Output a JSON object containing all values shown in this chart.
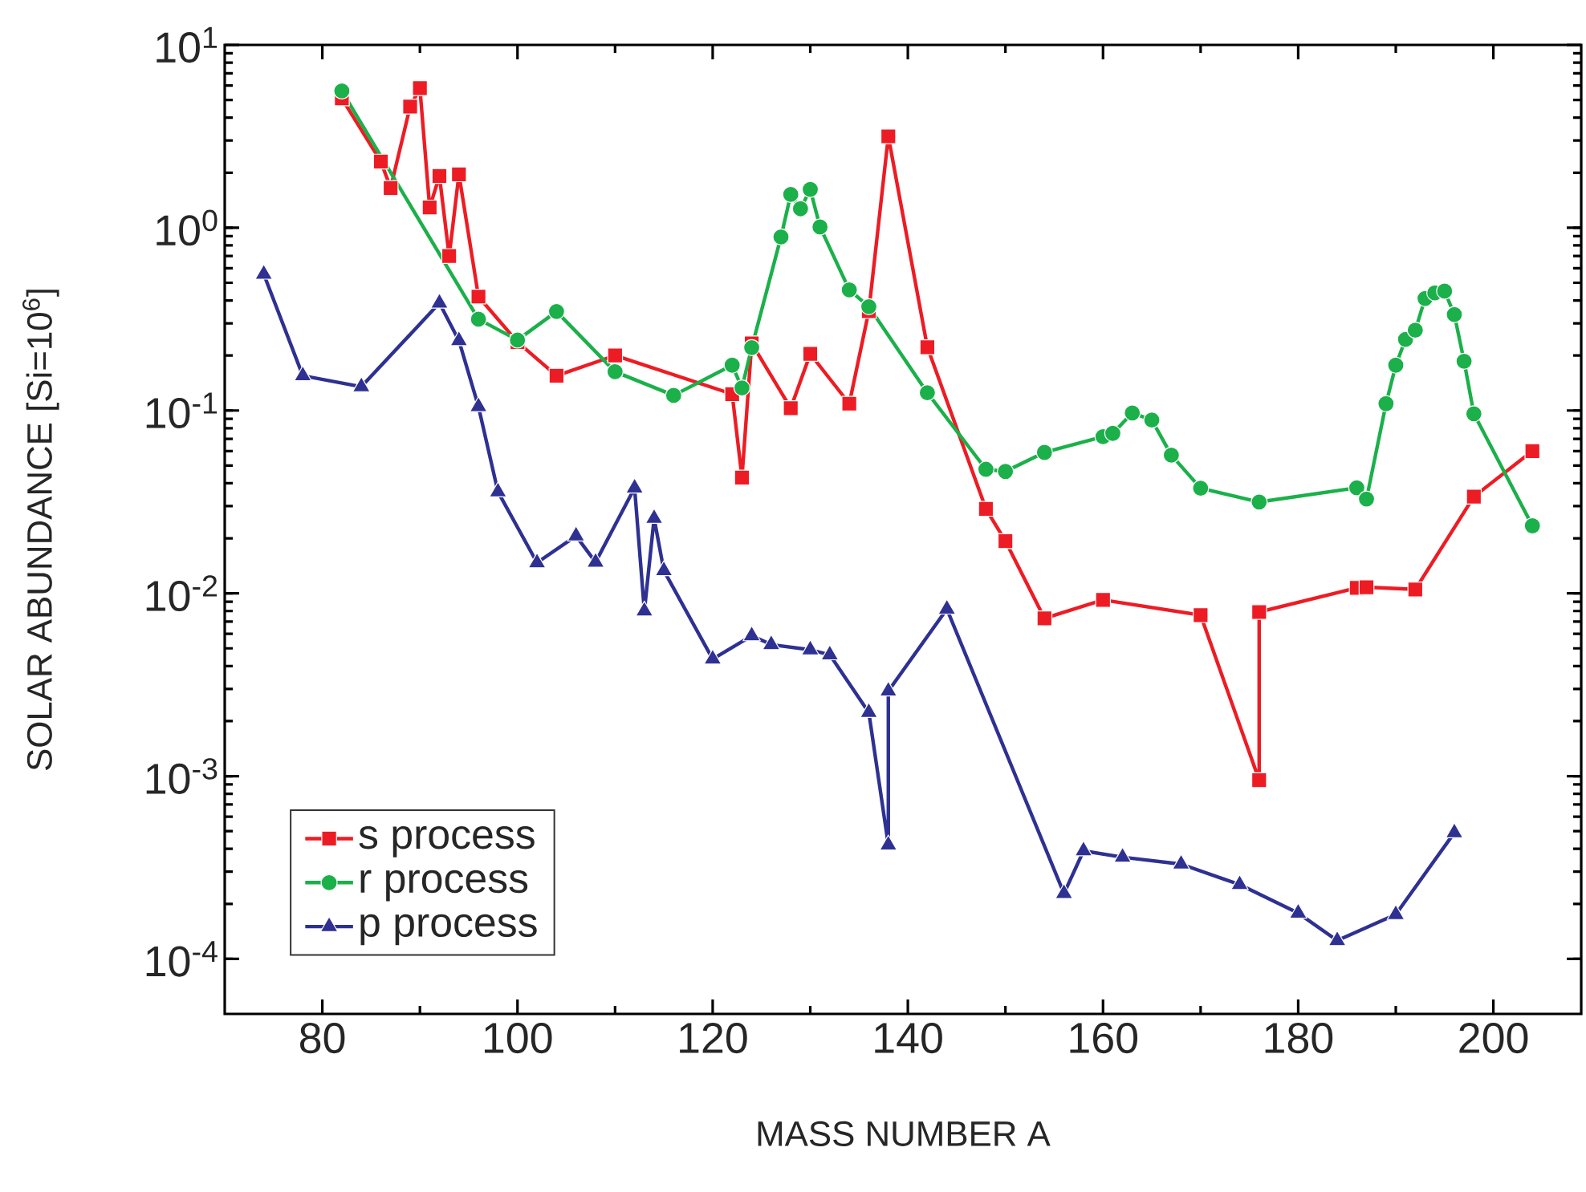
{
  "chart_data": {
    "type": "line",
    "xlabel": "MASS NUMBER A",
    "ylabel": "SOLAR ABUNDANCE [Si=10$^{6}$]",
    "log": "y",
    "legend": "bottom left",
    "grid": false,
    "xlim": [
      70,
      209
    ],
    "ylim": [
      5e-05,
      10
    ],
    "xticks": [
      80,
      100,
      120,
      140,
      160,
      180,
      200
    ],
    "yticks": [
      {
        "value": 0.0001,
        "label": "10$^{-4}$"
      },
      {
        "value": 0.001,
        "label": "10$^{-3}$"
      },
      {
        "value": 0.01,
        "label": "10$^{-2}$"
      },
      {
        "value": 0.1,
        "label": "10$^{-1}$"
      },
      {
        "value": 1,
        "label": "10$^{0}$"
      },
      {
        "value": 10,
        "label": "10$^{1}$"
      }
    ],
    "series": [
      {
        "name": "s process",
        "color": "#ed1c24",
        "marker": "square",
        "x": [
          82,
          86,
          87,
          89,
          90,
          91,
          92,
          93,
          94,
          96,
          100,
          104,
          110,
          122,
          123,
          124,
          128,
          130,
          134,
          136,
          138,
          142,
          148,
          150,
          154,
          160,
          170,
          176,
          176,
          186,
          187,
          192,
          198,
          204
        ],
        "values": [
          5.1,
          2.3,
          1.65,
          4.6,
          5.8,
          1.29,
          1.92,
          0.7,
          1.96,
          0.42,
          0.237,
          0.155,
          0.2,
          0.123,
          0.043,
          0.233,
          0.103,
          0.204,
          0.109,
          0.35,
          3.16,
          0.222,
          0.029,
          0.0193,
          0.0073,
          0.0092,
          0.0076,
          0.00095,
          0.0079,
          0.0107,
          0.0108,
          0.0105,
          0.0338,
          0.06
        ]
      },
      {
        "name": "r process",
        "color": "#1bb04a",
        "marker": "circle",
        "x": [
          82,
          96,
          100,
          104,
          110,
          116,
          122,
          123,
          124,
          127,
          128,
          129,
          130,
          131,
          134,
          136,
          142,
          148,
          150,
          154,
          160,
          161,
          163,
          165,
          167,
          170,
          176,
          186,
          187,
          189,
          190,
          191,
          192,
          193,
          194,
          195,
          196,
          197,
          198,
          204
        ],
        "values": [
          5.6,
          0.316,
          0.243,
          0.348,
          0.163,
          0.121,
          0.177,
          0.133,
          0.221,
          0.89,
          1.52,
          1.27,
          1.62,
          1.01,
          0.457,
          0.37,
          0.125,
          0.0477,
          0.0464,
          0.059,
          0.072,
          0.075,
          0.097,
          0.0887,
          0.057,
          0.0376,
          0.0316,
          0.0378,
          0.0328,
          0.109,
          0.177,
          0.245,
          0.275,
          0.41,
          0.44,
          0.45,
          0.335,
          0.186,
          0.096,
          0.0234
        ]
      },
      {
        "name": "p process",
        "color": "#2e3192",
        "marker": "triangle",
        "x": [
          74,
          78,
          84,
          92,
          94,
          96,
          98,
          102,
          106,
          108,
          112,
          113,
          114,
          115,
          120,
          124,
          126,
          130,
          132,
          136,
          138,
          138,
          144,
          156,
          158,
          162,
          168,
          174,
          180,
          184,
          190,
          196
        ],
        "values": [
          0.557,
          0.155,
          0.135,
          0.387,
          0.241,
          0.105,
          0.0359,
          0.0147,
          0.0206,
          0.0148,
          0.0377,
          0.008,
          0.0257,
          0.0133,
          0.00437,
          0.00586,
          0.00524,
          0.00491,
          0.00461,
          0.00223,
          0.00042,
          0.00292,
          0.0082,
          0.000228,
          0.00039,
          0.00036,
          0.00033,
          0.000255,
          0.000178,
          0.000126,
          0.000175,
          0.00049
        ]
      }
    ]
  }
}
